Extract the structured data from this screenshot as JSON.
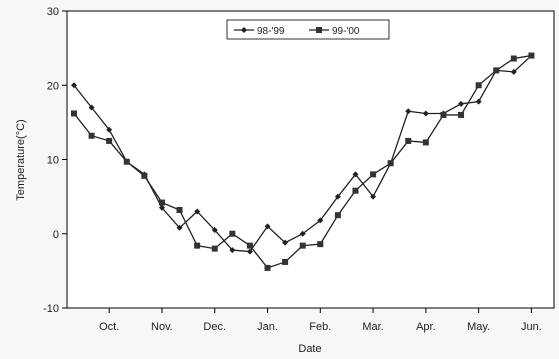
{
  "chart_data": {
    "type": "line",
    "xlabel": "Date",
    "ylabel": "Temperature(°C)",
    "ylim": [
      -10,
      30
    ],
    "yticks": [
      -10,
      0,
      10,
      20,
      30
    ],
    "xlim": [
      0,
      27
    ],
    "month_ticks": [
      {
        "label": "Oct.",
        "x": 2
      },
      {
        "label": "Nov.",
        "x": 5
      },
      {
        "label": "Dec.",
        "x": 8
      },
      {
        "label": "Jan.",
        "x": 11
      },
      {
        "label": "Feb.",
        "x": 14
      },
      {
        "label": "Mar.",
        "x": 17
      },
      {
        "label": "Apr.",
        "x": 20
      },
      {
        "label": "May.",
        "x": 23
      },
      {
        "label": "Jun.",
        "x": 26
      }
    ],
    "legend_position": "top-center",
    "grid": false,
    "series": [
      {
        "name": "98-'99",
        "marker": "diamond",
        "x": [
          0,
          1,
          2,
          3,
          4,
          5,
          6,
          7,
          8,
          9,
          10,
          11,
          12,
          13,
          14,
          15,
          16,
          17,
          18,
          19,
          20,
          21,
          22,
          23,
          24,
          25,
          26
        ],
        "values": [
          20,
          17,
          14,
          9.7,
          8,
          3.5,
          0.8,
          3,
          0.5,
          -2.2,
          -2.4,
          1,
          -1.2,
          0,
          1.8,
          5,
          8,
          5,
          9.5,
          16.5,
          16.2,
          16.2,
          17.5,
          17.8,
          22,
          21.8,
          24
        ]
      },
      {
        "name": "99-'00",
        "marker": "square",
        "x": [
          0,
          1,
          2,
          3,
          4,
          5,
          6,
          7,
          8,
          9,
          10,
          11,
          12,
          13,
          14,
          15,
          16,
          17,
          18,
          19,
          20,
          21,
          22,
          23,
          24,
          25,
          26
        ],
        "values": [
          16.2,
          13.2,
          12.5,
          9.7,
          7.8,
          4.2,
          3.2,
          -1.6,
          -2,
          0,
          -1.6,
          -4.6,
          -3.8,
          -1.6,
          -1.4,
          2.5,
          5.8,
          8,
          9.5,
          12.5,
          12.3,
          16,
          16,
          20,
          22,
          23.6,
          24
        ]
      }
    ]
  }
}
